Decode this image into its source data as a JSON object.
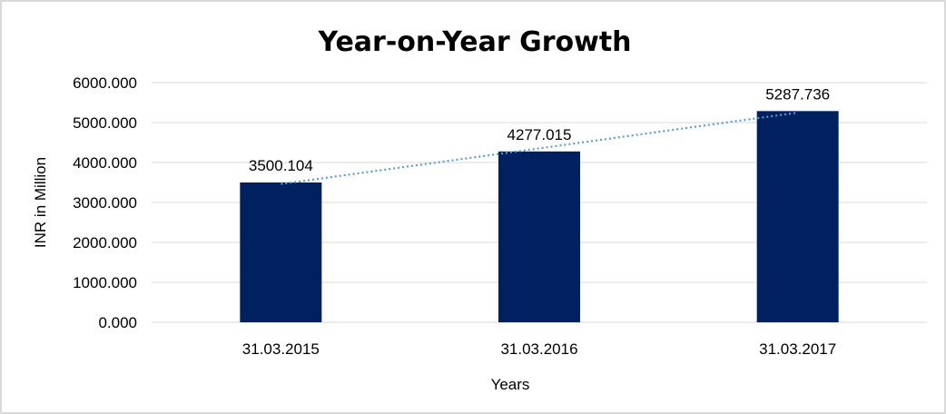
{
  "chart_data": {
    "type": "bar",
    "title": "Year-on-Year Growth",
    "xlabel": "Years",
    "ylabel": "INR in Million",
    "categories": [
      "31.03.2015",
      "31.03.2016",
      "31.03.2017"
    ],
    "values": [
      3500.104,
      4277.015,
      5287.736
    ],
    "data_labels": [
      "3500.104",
      "4277.015",
      "5287.736"
    ],
    "ylim": [
      0,
      6000
    ],
    "yticks": [
      "0.000",
      "1000.000",
      "2000.000",
      "3000.000",
      "4000.000",
      "5000.000",
      "6000.000"
    ],
    "grid": true,
    "trendline": "linear",
    "colors": {
      "bar": "#002060",
      "trendline": "#5B9BD5",
      "grid": "#d9d9d9"
    }
  }
}
